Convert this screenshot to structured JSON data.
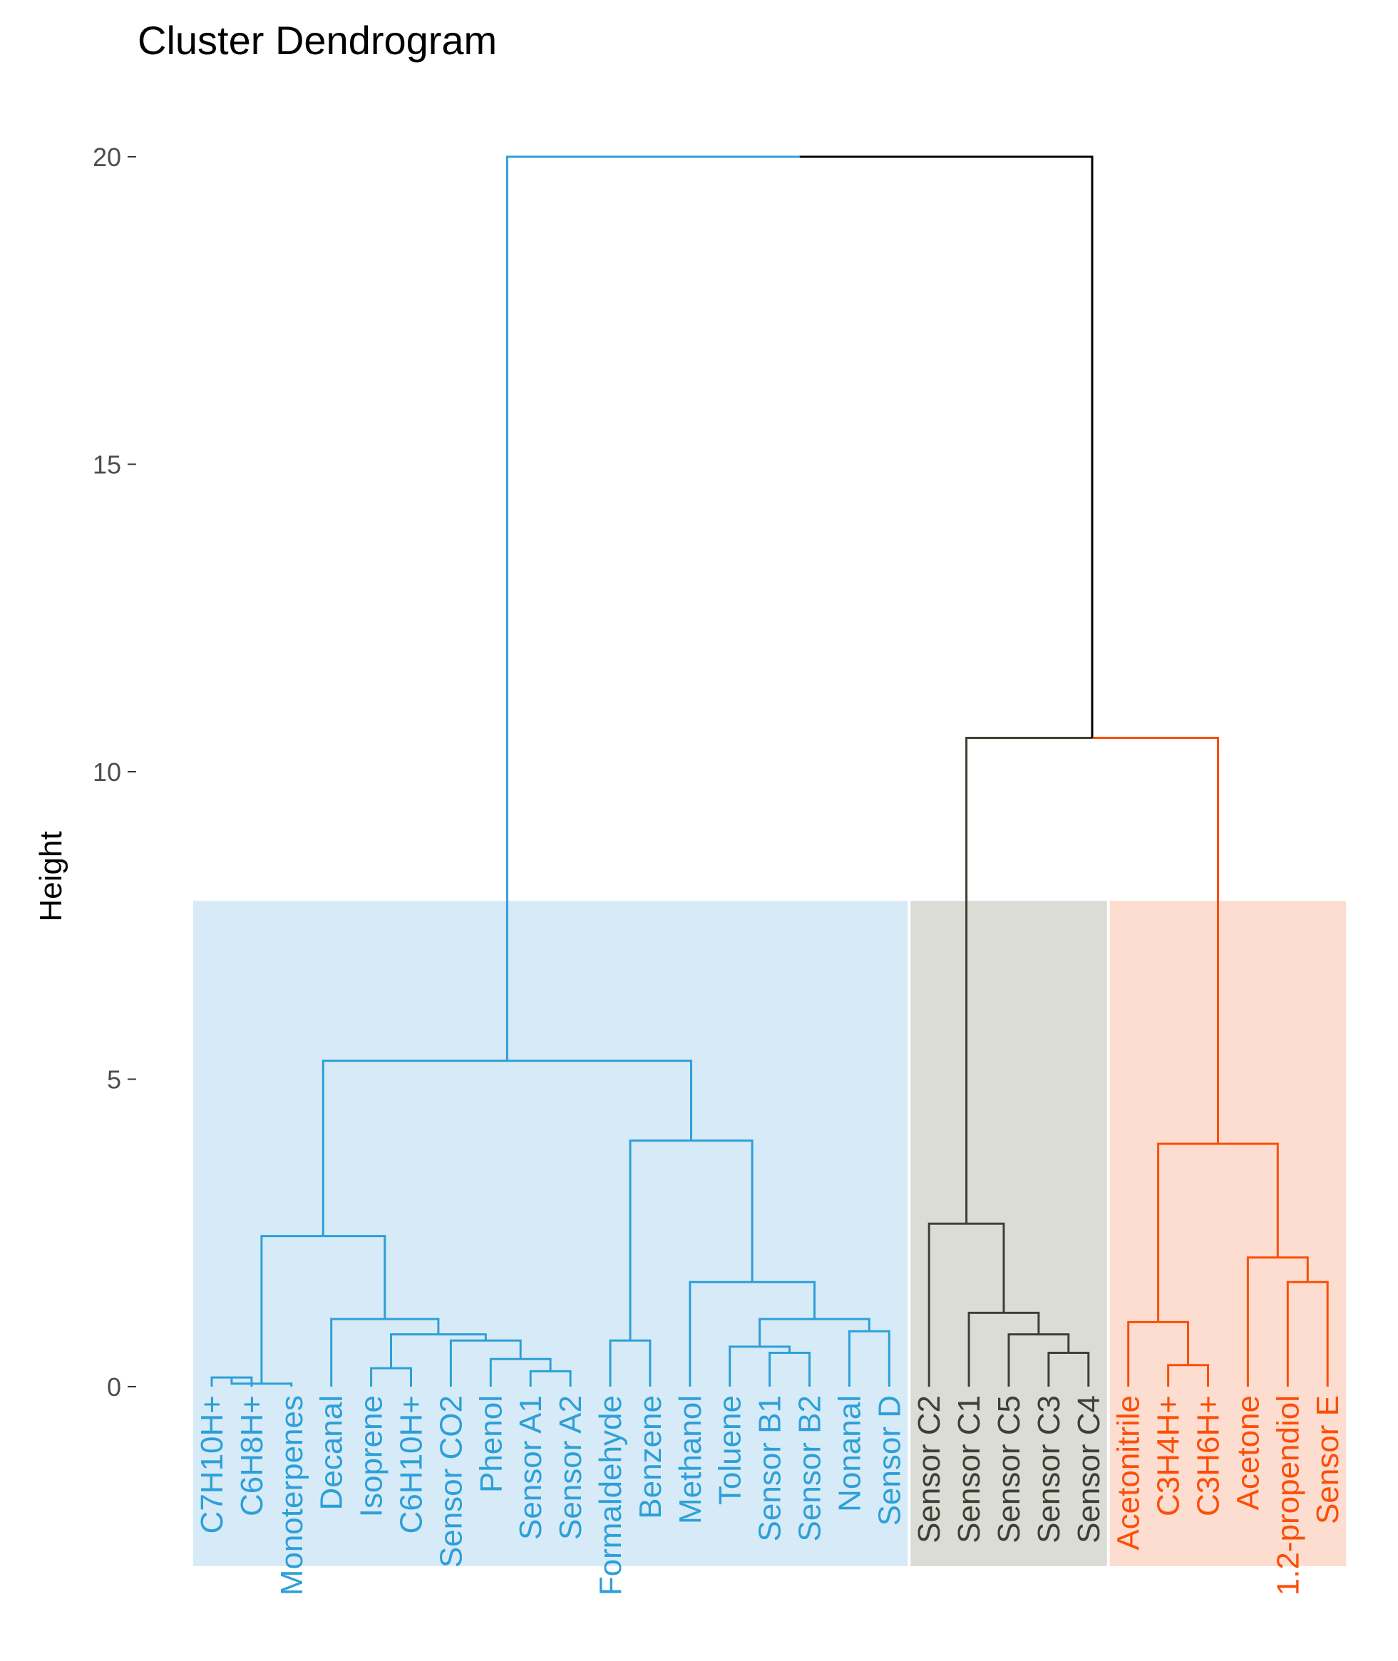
{
  "chart_data": {
    "type": "dendrogram",
    "title": "Cluster Dendrogram",
    "xlabel": "",
    "ylabel": "Height",
    "ylim": [
      0,
      20
    ],
    "yticks": [
      0,
      5,
      10,
      15,
      20
    ],
    "leaves": [
      {
        "label": "C7H10H+",
        "cluster": 1
      },
      {
        "label": "C6H8H+",
        "cluster": 1
      },
      {
        "label": "Monoterpenes",
        "cluster": 1
      },
      {
        "label": "Decanal",
        "cluster": 1
      },
      {
        "label": "Isoprene",
        "cluster": 1
      },
      {
        "label": "C6H10H+",
        "cluster": 1
      },
      {
        "label": "Sensor CO2",
        "cluster": 1
      },
      {
        "label": "Phenol",
        "cluster": 1
      },
      {
        "label": "Sensor A1",
        "cluster": 1
      },
      {
        "label": "Sensor A2",
        "cluster": 1
      },
      {
        "label": "Formaldehyde",
        "cluster": 1
      },
      {
        "label": "Benzene",
        "cluster": 1
      },
      {
        "label": "Methanol",
        "cluster": 1
      },
      {
        "label": "Toluene",
        "cluster": 1
      },
      {
        "label": "Sensor B1",
        "cluster": 1
      },
      {
        "label": "Sensor B2",
        "cluster": 1
      },
      {
        "label": "Nonanal",
        "cluster": 1
      },
      {
        "label": "Sensor D",
        "cluster": 1
      },
      {
        "label": "Sensor C2",
        "cluster": 2
      },
      {
        "label": "Sensor C1",
        "cluster": 2
      },
      {
        "label": "Sensor C5",
        "cluster": 2
      },
      {
        "label": "Sensor C3",
        "cluster": 2
      },
      {
        "label": "Sensor C4",
        "cluster": 2
      },
      {
        "label": "Acetonitrile",
        "cluster": 3
      },
      {
        "label": "C3H4H+",
        "cluster": 3
      },
      {
        "label": "C3H6H+",
        "cluster": 3
      },
      {
        "label": "Acetone",
        "cluster": 3
      },
      {
        "label": "1.2-propendiol",
        "cluster": 3
      },
      {
        "label": "Sensor E",
        "cluster": 3
      }
    ],
    "merges": [
      {
        "id": "m1",
        "left": 0,
        "right": 1,
        "height": 0.15,
        "cluster": 1
      },
      {
        "id": "m2",
        "left": "m1",
        "right": 2,
        "height": 0.05,
        "cluster": 1
      },
      {
        "id": "m3",
        "left": 4,
        "right": 5,
        "height": 0.3,
        "cluster": 1
      },
      {
        "id": "m4",
        "left": 8,
        "right": 9,
        "height": 0.25,
        "cluster": 1
      },
      {
        "id": "m5",
        "left": 7,
        "right": "m4",
        "height": 0.45,
        "cluster": 1
      },
      {
        "id": "m6",
        "left": 6,
        "right": "m5",
        "height": 0.75,
        "cluster": 1
      },
      {
        "id": "m7",
        "left": "m3",
        "right": "m6",
        "height": 0.85,
        "cluster": 1
      },
      {
        "id": "m8",
        "left": 3,
        "right": "m7",
        "height": 1.1,
        "cluster": 1
      },
      {
        "id": "m9",
        "left": "m2",
        "right": "m8",
        "height": 2.45,
        "cluster": 1
      },
      {
        "id": "m10",
        "left": 10,
        "right": 11,
        "height": 0.75,
        "cluster": 1
      },
      {
        "id": "m11",
        "left": 14,
        "right": 15,
        "height": 0.55,
        "cluster": 1
      },
      {
        "id": "m12",
        "left": 13,
        "right": "m11",
        "height": 0.65,
        "cluster": 1
      },
      {
        "id": "m13",
        "left": 16,
        "right": 17,
        "height": 0.9,
        "cluster": 1
      },
      {
        "id": "m14",
        "left": "m12",
        "right": "m13",
        "height": 1.1,
        "cluster": 1
      },
      {
        "id": "m15",
        "left": 12,
        "right": "m14",
        "height": 1.7,
        "cluster": 1
      },
      {
        "id": "m16",
        "left": "m10",
        "right": "m15",
        "height": 4.0,
        "cluster": 1
      },
      {
        "id": "m17",
        "left": "m9",
        "right": "m16",
        "height": 5.3,
        "cluster": 1
      },
      {
        "id": "m18",
        "left": 21,
        "right": 22,
        "height": 0.55,
        "cluster": 2
      },
      {
        "id": "m19",
        "left": 20,
        "right": "m18",
        "height": 0.85,
        "cluster": 2
      },
      {
        "id": "m20",
        "left": 19,
        "right": "m19",
        "height": 1.2,
        "cluster": 2
      },
      {
        "id": "m21",
        "left": 18,
        "right": "m20",
        "height": 2.65,
        "cluster": 2
      },
      {
        "id": "m22",
        "left": 24,
        "right": 25,
        "height": 0.35,
        "cluster": 3
      },
      {
        "id": "m23",
        "left": 23,
        "right": "m22",
        "height": 1.05,
        "cluster": 3
      },
      {
        "id": "m24",
        "left": 27,
        "right": 28,
        "height": 1.7,
        "cluster": 3
      },
      {
        "id": "m25",
        "left": 26,
        "right": "m24",
        "height": 2.1,
        "cluster": 3
      },
      {
        "id": "m26",
        "left": "m23",
        "right": "m25",
        "height": 3.95,
        "cluster": 3
      },
      {
        "id": "m27",
        "left": "m21",
        "right": "m26",
        "height": 10.55,
        "cluster": 0,
        "left_cluster": 2,
        "right_cluster": 3
      },
      {
        "id": "m28",
        "left": "m17",
        "right": "m27",
        "height": 20.0,
        "cluster": 0,
        "left_cluster": 1,
        "right_cluster": 0
      }
    ],
    "cluster_boxes_top_height": 7.9,
    "colors": {
      "cluster_1": "#2e9fd8",
      "cluster_2": "#3f3f33",
      "cluster_3": "#fc4e07",
      "root": "#000000",
      "box_1": "#d6ebf7",
      "box_2": "#dcdcd6",
      "box_3": "#fcddd0"
    }
  }
}
